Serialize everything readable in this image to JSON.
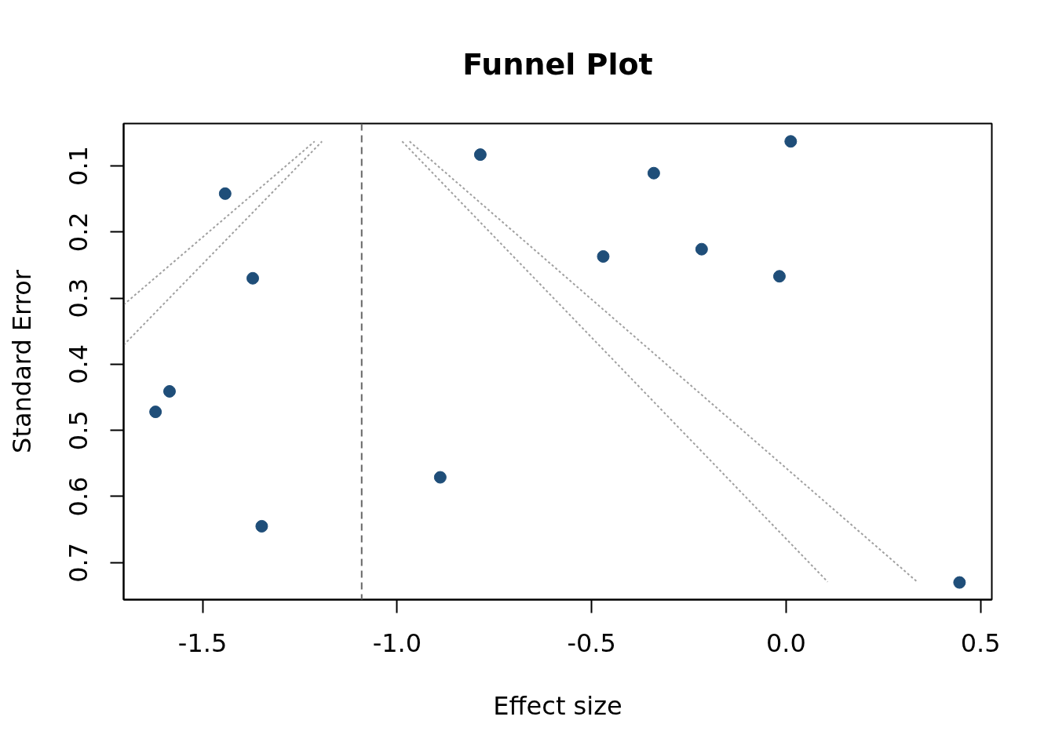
{
  "chart_data": {
    "type": "scatter",
    "title": "Funnel Plot",
    "xlabel": "Effect size",
    "ylabel": "Standard Error",
    "xlim": [
      -1.703,
      0.529
    ],
    "ylim": [
      0.756,
      0.036
    ],
    "xticks": [
      -1.5,
      {
        "value": -1,
        "label": "-1.0"
      },
      -0.5,
      {
        "value": 0,
        "label": "0.0"
      },
      0.5
    ],
    "yticks": [
      0.1,
      0.2,
      0.3,
      0.4,
      0.5,
      0.6,
      0.7
    ],
    "series": [
      {
        "color": "#1f4e79",
        "marker": "circle",
        "x": [
          -1.442,
          -1.371,
          -1.585,
          -1.621,
          -1.348,
          -0.889,
          -0.786,
          -0.47,
          -0.34,
          -0.217,
          -0.017,
          0.012,
          0.446
        ],
        "values": [
          0.142,
          0.27,
          0.441,
          0.472,
          0.645,
          0.571,
          0.083,
          0.237,
          0.111,
          0.226,
          0.267,
          0.063,
          0.73
        ]
      },
      {
        "type": "line",
        "color": "#a0a0a0",
        "line_style": "dotted",
        "x": [
          -1.703,
          -1.212
        ],
        "values": [
          0.31,
          0.063
        ]
      },
      {
        "type": "line",
        "color": "#a0a0a0",
        "line_style": "dotted",
        "x": [
          -1.703,
          -1.193
        ],
        "values": [
          0.371,
          0.063
        ]
      },
      {
        "type": "line",
        "color": "#a0a0a0",
        "line_style": "dotted",
        "x": [
          -0.987,
          0.107
        ],
        "values": [
          0.063,
          0.729
        ]
      },
      {
        "type": "line",
        "color": "#a0a0a0",
        "line_style": "dotted",
        "x": [
          -0.968,
          0.339
        ],
        "values": [
          0.063,
          0.73
        ]
      }
    ],
    "ref_lines": [
      {
        "axis": "x",
        "value": -1.091,
        "color": "#666666",
        "line_style": "dashed"
      }
    ]
  }
}
